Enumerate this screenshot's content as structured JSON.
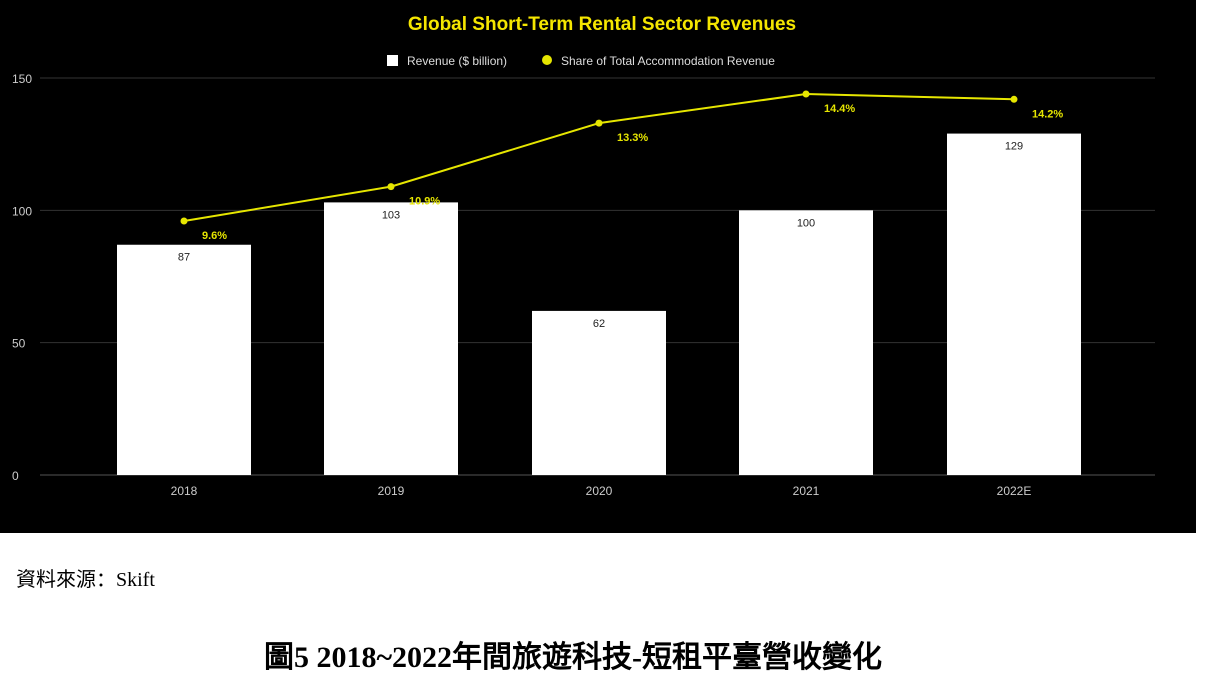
{
  "chart_data": {
    "type": "bar",
    "title": "Global Short-Term Rental Sector Revenues",
    "categories": [
      "2018",
      "2019",
      "2020",
      "2021",
      "2022E"
    ],
    "series": [
      {
        "name": "Revenue ($ billion)",
        "kind": "bar",
        "color": "#ffffff",
        "values": [
          87,
          103,
          62,
          100,
          129
        ],
        "labels": [
          "87",
          "103",
          "62",
          "100",
          "129"
        ]
      },
      {
        "name": "Share of Total Accommodation Revenue",
        "kind": "line",
        "color": "#e6e600",
        "values": [
          9.6,
          10.9,
          13.3,
          14.4,
          14.2
        ],
        "labels": [
          "9.6%",
          "10.9%",
          "13.3%",
          "14.4%",
          "14.2%"
        ]
      }
    ],
    "ylim": [
      0,
      150
    ],
    "yticks": [
      "0",
      "50",
      "100",
      "150"
    ],
    "grid": true,
    "legend_position": "top-center",
    "background": "#000000",
    "title_color": "#f5e600"
  },
  "source": "資料來源：Skift",
  "caption": "圖5 2018~2022年間旅遊科技-短租平臺營收變化"
}
